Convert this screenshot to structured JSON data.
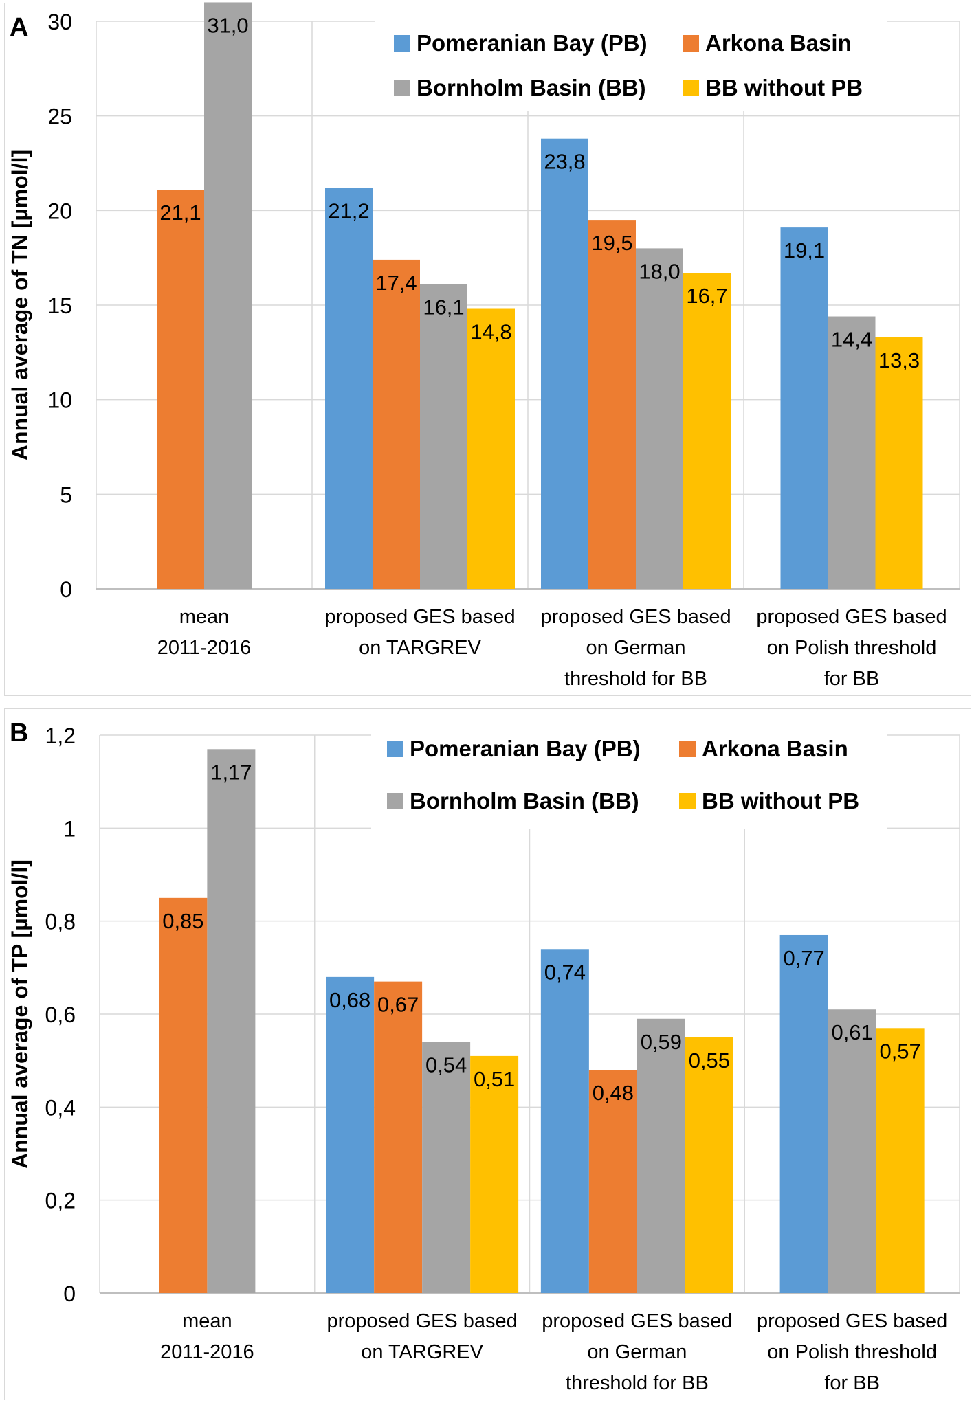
{
  "legend": [
    {
      "name": "Pomeranian Bay (PB)",
      "color": "#5B9BD5"
    },
    {
      "name": "Arkona Basin",
      "color": "#ED7D31"
    },
    {
      "name": "Bornholm Basin (BB)",
      "color": "#A5A5A5"
    },
    {
      "name": "BB without PB",
      "color": "#FFC000"
    }
  ],
  "chart_data": [
    {
      "panel_label": "A",
      "type": "bar",
      "ylabel": "Annual average of TN [µmol/l]",
      "ylim": [
        0,
        30
      ],
      "yticks": [
        "0",
        "5",
        "10",
        "15",
        "20",
        "25",
        "30"
      ],
      "yticks_values": [
        0,
        5,
        10,
        15,
        20,
        25,
        30
      ],
      "legend_position": "top-right",
      "categories": [
        [
          "mean",
          "2011-2016"
        ],
        [
          "proposed GES based",
          "on TARGREV"
        ],
        [
          "proposed GES based",
          "on German",
          "threshold for BB"
        ],
        [
          "proposed GES based",
          "on Polish threshold",
          "for BB"
        ]
      ],
      "series": [
        {
          "name": "Pomeranian Bay (PB)",
          "values": [
            null,
            21.2,
            23.8,
            19.1
          ],
          "labels": [
            null,
            "21,2",
            "23,8",
            "19,1"
          ]
        },
        {
          "name": "Arkona Basin",
          "values": [
            21.1,
            17.4,
            19.5,
            null
          ],
          "labels": [
            "21,1",
            "17,4",
            "19,5",
            null
          ]
        },
        {
          "name": "Bornholm Basin (BB)",
          "values": [
            31.0,
            16.1,
            18.0,
            14.4
          ],
          "labels": [
            "31,0",
            "16,1",
            "18,0",
            "14,4"
          ]
        },
        {
          "name": "BB without PB",
          "values": [
            null,
            14.8,
            16.7,
            13.3
          ],
          "labels": [
            null,
            "14,8",
            "16,7",
            "13,3"
          ]
        }
      ]
    },
    {
      "panel_label": "B",
      "type": "bar",
      "ylabel": "Annual average of TP [µmol/l]",
      "ylim": [
        0,
        1.2
      ],
      "yticks": [
        "0",
        "0,2",
        "0,4",
        "0,6",
        "0,8",
        "1",
        "1,2"
      ],
      "yticks_values": [
        0,
        0.2,
        0.4,
        0.6,
        0.8,
        1.0,
        1.2
      ],
      "legend_position": "top-right",
      "categories": [
        [
          "mean",
          "2011-2016"
        ],
        [
          "proposed GES based",
          "on TARGREV"
        ],
        [
          "proposed GES based",
          "on German",
          "threshold for BB"
        ],
        [
          "proposed GES based",
          "on Polish threshold",
          "for BB"
        ]
      ],
      "series": [
        {
          "name": "Pomeranian Bay (PB)",
          "values": [
            null,
            0.68,
            0.74,
            0.77
          ],
          "labels": [
            null,
            "0,68",
            "0,74",
            "0,77"
          ]
        },
        {
          "name": "Arkona Basin",
          "values": [
            0.85,
            0.67,
            0.48,
            null
          ],
          "labels": [
            "0,85",
            "0,67",
            "0,48",
            null
          ]
        },
        {
          "name": "Bornholm Basin (BB)",
          "values": [
            1.17,
            0.54,
            0.59,
            0.61
          ],
          "labels": [
            "1,17",
            "0,54",
            "0,59",
            "0,61"
          ]
        },
        {
          "name": "BB without PB",
          "values": [
            null,
            0.51,
            0.55,
            0.57
          ],
          "labels": [
            null,
            "0,51",
            "0,55",
            "0,57"
          ]
        }
      ]
    }
  ]
}
